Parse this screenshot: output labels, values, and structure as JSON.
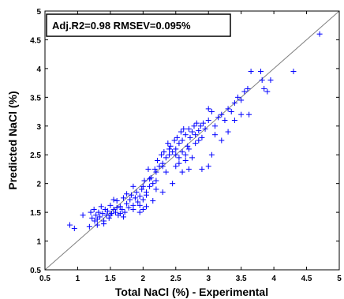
{
  "chart_data": {
    "type": "scatter",
    "xlabel": "Total NaCl (%) - Experimental",
    "ylabel": "Predicted NaCl (%)",
    "xlim": [
      0.5,
      5
    ],
    "ylim": [
      0.5,
      5
    ],
    "xticks": [
      "0.5",
      "1",
      "1.5",
      "2",
      "2.5",
      "3",
      "3.5",
      "4",
      "4.5",
      "5"
    ],
    "yticks": [
      "0.5",
      "1",
      "1.5",
      "2",
      "2.5",
      "3",
      "3.5",
      "4",
      "4.5",
      "5"
    ],
    "grid": false,
    "marker": "plus",
    "marker_color": "#0000ff",
    "reference_line": {
      "from": [
        0.5,
        0.5
      ],
      "to": [
        5,
        5
      ],
      "color": "#808080"
    },
    "annotation": "Adj.R2=0.98 RMSEV=0.095%",
    "series": [
      {
        "points": [
          [
            0.88,
            1.28
          ],
          [
            0.95,
            1.22
          ],
          [
            1.08,
            1.45
          ],
          [
            1.18,
            1.25
          ],
          [
            1.2,
            1.5
          ],
          [
            1.22,
            1.4
          ],
          [
            1.25,
            1.55
          ],
          [
            1.26,
            1.35
          ],
          [
            1.28,
            1.45
          ],
          [
            1.3,
            1.38
          ],
          [
            1.32,
            1.5
          ],
          [
            1.34,
            1.42
          ],
          [
            1.36,
            1.6
          ],
          [
            1.38,
            1.48
          ],
          [
            1.4,
            1.35
          ],
          [
            1.42,
            1.55
          ],
          [
            1.44,
            1.45
          ],
          [
            1.46,
            1.52
          ],
          [
            1.48,
            1.4
          ],
          [
            1.5,
            1.62
          ],
          [
            1.52,
            1.48
          ],
          [
            1.55,
            1.55
          ],
          [
            1.58,
            1.5
          ],
          [
            1.6,
            1.7
          ],
          [
            1.62,
            1.45
          ],
          [
            1.65,
            1.6
          ],
          [
            1.68,
            1.55
          ],
          [
            1.7,
            1.75
          ],
          [
            1.72,
            1.5
          ],
          [
            1.75,
            1.65
          ],
          [
            1.78,
            1.58
          ],
          [
            1.8,
            1.72
          ],
          [
            1.82,
            1.8
          ],
          [
            1.85,
            1.62
          ],
          [
            1.88,
            1.75
          ],
          [
            1.9,
            1.85
          ],
          [
            1.92,
            1.68
          ],
          [
            1.95,
            1.78
          ],
          [
            1.98,
            1.9
          ],
          [
            2.0,
            1.72
          ],
          [
            2.0,
            1.95
          ],
          [
            2.02,
            2.05
          ],
          [
            2.05,
            1.85
          ],
          [
            2.08,
            2.25
          ],
          [
            2.1,
            1.95
          ],
          [
            2.12,
            2.1
          ],
          [
            2.15,
            2.0
          ],
          [
            2.18,
            2.25
          ],
          [
            2.2,
            2.2
          ],
          [
            2.22,
            2.4
          ],
          [
            2.25,
            2.3
          ],
          [
            2.28,
            2.5
          ],
          [
            2.3,
            2.35
          ],
          [
            2.32,
            2.55
          ],
          [
            2.35,
            2.45
          ],
          [
            2.38,
            2.7
          ],
          [
            2.4,
            2.5
          ],
          [
            2.42,
            2.65
          ],
          [
            2.45,
            2.55
          ],
          [
            2.48,
            2.75
          ],
          [
            2.5,
            2.6
          ],
          [
            2.52,
            2.8
          ],
          [
            2.55,
            2.7
          ],
          [
            2.58,
            2.9
          ],
          [
            2.6,
            2.75
          ],
          [
            2.62,
            2.95
          ],
          [
            2.65,
            2.85
          ],
          [
            2.68,
            2.65
          ],
          [
            2.7,
            2.95
          ],
          [
            2.72,
            2.8
          ],
          [
            2.75,
            2.9
          ],
          [
            2.78,
            3.0
          ],
          [
            2.8,
            2.85
          ],
          [
            2.82,
            3.05
          ],
          [
            2.85,
            2.92
          ],
          [
            2.88,
            3.0
          ],
          [
            2.9,
            2.8
          ],
          [
            2.92,
            3.05
          ],
          [
            2.95,
            2.95
          ],
          [
            3.0,
            3.1
          ],
          [
            3.0,
            3.3
          ],
          [
            3.05,
            3.25
          ],
          [
            3.1,
            3.0
          ],
          [
            3.15,
            3.15
          ],
          [
            3.2,
            3.2
          ],
          [
            3.25,
            3.1
          ],
          [
            3.3,
            3.3
          ],
          [
            3.35,
            3.25
          ],
          [
            3.4,
            3.4
          ],
          [
            3.45,
            3.5
          ],
          [
            3.5,
            3.45
          ],
          [
            3.55,
            3.6
          ],
          [
            3.6,
            3.65
          ],
          [
            3.62,
            3.2
          ],
          [
            3.65,
            3.95
          ],
          [
            3.8,
            3.95
          ],
          [
            3.82,
            3.8
          ],
          [
            3.85,
            3.65
          ],
          [
            3.9,
            3.6
          ],
          [
            3.95,
            3.8
          ],
          [
            4.3,
            3.95
          ],
          [
            4.7,
            4.6
          ],
          [
            1.55,
            1.72
          ],
          [
            1.6,
            1.58
          ],
          [
            1.75,
            1.82
          ],
          [
            1.85,
            1.95
          ],
          [
            2.05,
            1.8
          ],
          [
            2.1,
            2.08
          ],
          [
            2.2,
            2.05
          ],
          [
            2.3,
            2.3
          ],
          [
            2.4,
            2.6
          ],
          [
            2.5,
            2.5
          ],
          [
            2.55,
            2.35
          ],
          [
            2.6,
            2.55
          ],
          [
            2.65,
            2.5
          ],
          [
            2.7,
            2.6
          ],
          [
            2.75,
            2.45
          ],
          [
            2.8,
            2.7
          ],
          [
            2.85,
            2.75
          ],
          [
            2.9,
            2.25
          ],
          [
            3.0,
            2.3
          ],
          [
            3.05,
            2.5
          ],
          [
            3.1,
            2.85
          ],
          [
            3.2,
            2.75
          ],
          [
            3.3,
            2.9
          ],
          [
            3.4,
            3.1
          ],
          [
            3.5,
            3.2
          ],
          [
            2.0,
            1.55
          ],
          [
            1.95,
            1.62
          ],
          [
            2.2,
            1.9
          ],
          [
            2.3,
            1.85
          ],
          [
            2.35,
            2.2
          ],
          [
            2.45,
            2.0
          ],
          [
            2.5,
            2.3
          ],
          [
            2.55,
            2.45
          ],
          [
            2.6,
            2.2
          ],
          [
            2.65,
            2.4
          ],
          [
            2.7,
            2.25
          ],
          [
            1.3,
            1.28
          ],
          [
            1.4,
            1.3
          ],
          [
            1.5,
            1.45
          ],
          [
            1.65,
            1.48
          ],
          [
            1.7,
            1.42
          ],
          [
            1.85,
            1.55
          ],
          [
            1.95,
            1.5
          ],
          [
            2.05,
            1.6
          ],
          [
            2.15,
            1.7
          ]
        ]
      }
    ]
  }
}
